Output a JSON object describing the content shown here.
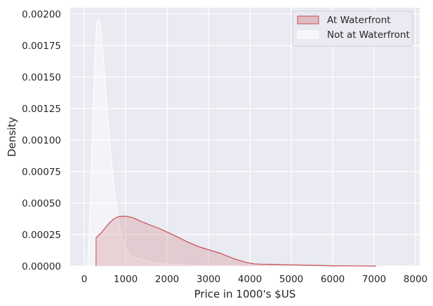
{
  "chart_data": {
    "type": "area",
    "title": "",
    "xlabel": "Price in 1000's $US",
    "ylabel": "Density",
    "xlim": [
      -340,
      8100
    ],
    "ylim": [
      0,
      0.00205
    ],
    "grid": true,
    "legend_position": "top-right",
    "x_ticks": [
      0,
      1000,
      2000,
      3000,
      4000,
      5000,
      6000,
      7000,
      8000
    ],
    "x_tick_labels": [
      "0",
      "1000",
      "2000",
      "3000",
      "4000",
      "5000",
      "6000",
      "7000",
      "8000"
    ],
    "y_ticks": [
      0,
      0.00025,
      0.0005,
      0.00075,
      0.001,
      0.00125,
      0.0015,
      0.00175,
      0.002
    ],
    "y_tick_labels": [
      "0.00000",
      "0.00025",
      "0.00050",
      "0.00075",
      "0.00100",
      "0.00125",
      "0.00150",
      "0.00175",
      "0.00200"
    ],
    "series": [
      {
        "name": "Not at Waterfront",
        "color": "#ffffff",
        "fill": "#ffffff",
        "fill_opacity": 0.45,
        "x": [
          75,
          100,
          150,
          200,
          250,
          300,
          350,
          400,
          450,
          500,
          550,
          600,
          650,
          700,
          800,
          900,
          1000,
          1100,
          1200,
          1400,
          1600,
          1800,
          2000,
          2500,
          3000,
          4000,
          5000,
          6000,
          7000,
          7700
        ],
        "y": [
          0.0,
          0.0001,
          0.00055,
          0.0011,
          0.0016,
          0.00192,
          0.00196,
          0.00188,
          0.0017,
          0.00148,
          0.00125,
          0.00104,
          0.00085,
          0.00068,
          0.0004,
          0.00024,
          0.00014,
          9e-05,
          7e-05,
          5e-05,
          3e-05,
          2e-05,
          1.5e-05,
          8e-06,
          5e-06,
          2e-06,
          1e-06,
          5e-07,
          2e-07,
          0.0
        ]
      },
      {
        "name": "At Waterfront",
        "color": "#c44e52",
        "fill": "#c44e52",
        "fill_opacity": 0.2,
        "x": [
          285,
          400,
          500,
          600,
          700,
          800,
          900,
          1000,
          1100,
          1200,
          1300,
          1400,
          1500,
          1600,
          1800,
          2000,
          2200,
          2500,
          2800,
          3000,
          3300,
          3600,
          3900,
          4100,
          4300,
          4500,
          5000,
          5500,
          6000,
          7050
        ],
        "y": [
          0.000225,
          0.00026,
          0.0003,
          0.00034,
          0.00037,
          0.00039,
          0.000395,
          0.000395,
          0.00039,
          0.00038,
          0.000365,
          0.00035,
          0.000338,
          0.000325,
          0.0003,
          0.00027,
          0.00024,
          0.00019,
          0.00015,
          0.00013,
          0.0001,
          6e-05,
          3e-05,
          1.8e-05,
          1.5e-05,
          1.4e-05,
          1e-05,
          6e-06,
          2.5e-06,
          0.0
        ]
      }
    ]
  },
  "legend": {
    "items": [
      {
        "label": "At Waterfront",
        "color": "#c44e52"
      },
      {
        "label": "Not at Waterfront",
        "color": "#ffffff"
      }
    ]
  }
}
